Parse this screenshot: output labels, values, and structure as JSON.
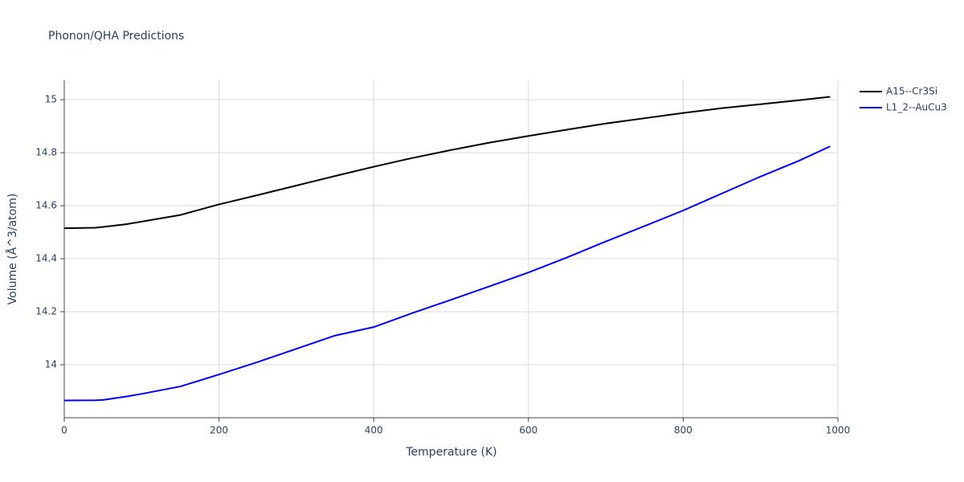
{
  "chart_data": {
    "type": "line",
    "title": "Phonon/QHA Predictions",
    "x_label": "Temperature (K)",
    "y_label": "Volume (Å^3/atom)",
    "x": [
      0,
      40,
      50,
      80,
      100,
      150,
      200,
      250,
      300,
      350,
      400,
      450,
      500,
      550,
      600,
      650,
      700,
      750,
      800,
      850,
      900,
      950,
      990
    ],
    "series": [
      {
        "name": "A15--Cr3Si",
        "color": "#000000",
        "values": [
          14.515,
          14.517,
          14.52,
          14.53,
          14.54,
          14.565,
          14.605,
          14.64,
          14.676,
          14.712,
          14.747,
          14.78,
          14.81,
          14.838,
          14.863,
          14.887,
          14.91,
          14.93,
          14.95,
          14.968,
          14.983,
          14.998,
          15.011
        ]
      },
      {
        "name": "L1_2--AuCu3",
        "color": "#0000ff",
        "values": [
          13.865,
          13.866,
          13.867,
          13.88,
          13.89,
          13.918,
          13.963,
          14.01,
          14.06,
          14.11,
          14.142,
          14.195,
          14.245,
          14.296,
          14.348,
          14.405,
          14.465,
          14.523,
          14.582,
          14.646,
          14.71,
          14.77,
          14.824
        ]
      }
    ],
    "xlim": [
      0,
      1000
    ],
    "xticks": [
      0,
      200,
      400,
      600,
      800,
      1000
    ],
    "ylim": [
      13.8,
      15.073
    ],
    "yticks": [
      14,
      14.2,
      14.4,
      14.6,
      14.8,
      15
    ],
    "grid": true,
    "legend": "top-right"
  }
}
